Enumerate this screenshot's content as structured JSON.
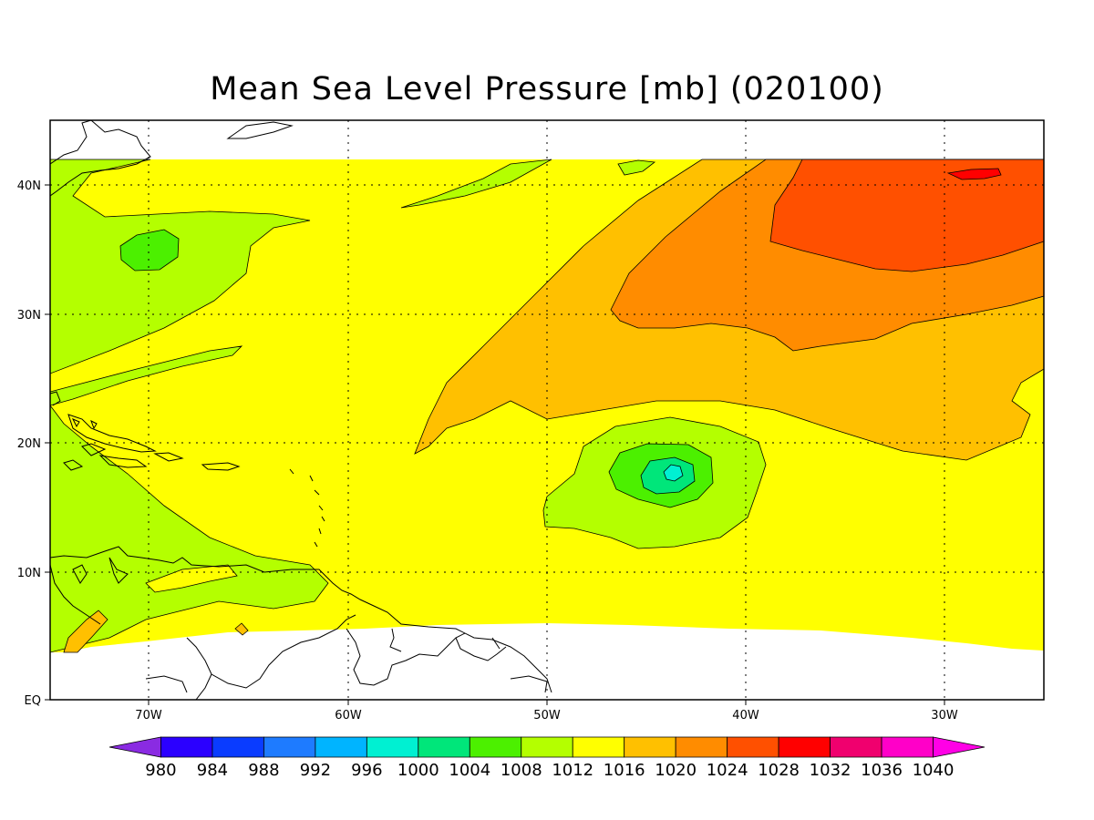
{
  "title": "Mean Sea Level Pressure [mb] (020100)",
  "lat_labels": [
    "40N",
    "30N",
    "20N",
    "10N",
    "EQ"
  ],
  "lon_labels": [
    "70W",
    "60W",
    "50W",
    "40W",
    "30W"
  ],
  "colorbar": {
    "labels": [
      "980",
      "984",
      "988",
      "992",
      "996",
      "1000",
      "1004",
      "1008",
      "1012",
      "1016",
      "1020",
      "1024",
      "1028",
      "1032",
      "1036",
      "1040"
    ],
    "colors": [
      "#8a2be2",
      "#2b00ff",
      "#0a3cff",
      "#1e7bff",
      "#00b4ff",
      "#00f0d2",
      "#00e67a",
      "#4cf000",
      "#b4ff00",
      "#ffff00",
      "#ffc000",
      "#ff8c00",
      "#ff5000",
      "#ff0000",
      "#f0006e",
      "#ff00c8",
      "#ff00e6"
    ]
  },
  "fill_colors": {
    "c1008": "#4cf000",
    "c1012": "#b4ff00",
    "c1016": "#ffff00",
    "c1020": "#ffc000",
    "c1024": "#ff8c00",
    "c1028": "#ff5000",
    "c1032": "#ff0000",
    "c1004": "#00e67a",
    "c1000": "#00f0d2"
  }
}
